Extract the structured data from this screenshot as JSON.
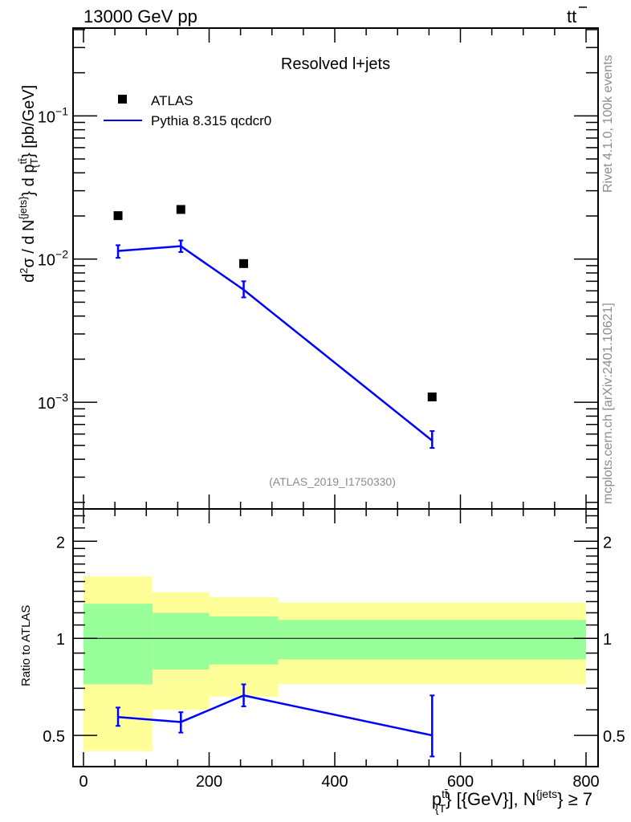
{
  "header": {
    "left": "13000 GeV pp",
    "right_main": "tt",
    "right_bar": "¯"
  },
  "side_labels": {
    "rivet": "Rivet 4.1.0,  100k events",
    "mcplots": "mcplots.cern.ch [arXiv:2401.10621]"
  },
  "colors": {
    "mc": "#0000ff",
    "data": "#000000",
    "band_inner": "#99ff99",
    "band_outer": "#ffff99"
  },
  "chart_data": [
    {
      "type": "scatter",
      "title": "Resolved l+jets",
      "analysis_tag": "(ATLAS_2019_I1750330)",
      "ylabel_parts": {
        "d": "d",
        "sq": "2",
        "sigma": "σ /  d N",
        "jets": "{jets}",
        "brace": "} d p",
        "tt": "tt̄",
        "T": "{T",
        "unit": "} [pb/GeV]"
      },
      "yscale": "log",
      "ylim": [
        0.00018,
        0.41
      ],
      "ytick_labels": [
        {
          "value": 0.1,
          "base": "10",
          "exp": "−1"
        },
        {
          "value": 0.01,
          "base": "10",
          "exp": "−2"
        },
        {
          "value": 0.001,
          "base": "10",
          "exp": "−3"
        }
      ],
      "xlim": [
        -17,
        819
      ],
      "legend": {
        "placement": "top-left",
        "entries": [
          "ATLAS",
          "Pythia 8.315 qcdcr0"
        ]
      },
      "series": [
        {
          "name": "ATLAS",
          "style": "markers",
          "x": [
            55,
            155,
            255,
            555
          ],
          "y": [
            0.0201,
            0.0222,
            0.0093,
            0.00109
          ]
        },
        {
          "name": "Pythia 8.315 qcdcr0",
          "style": "line",
          "x": [
            55,
            155,
            255,
            555
          ],
          "y": [
            0.0114,
            0.0123,
            0.0061,
            0.00054
          ],
          "yerr_low": [
            0.0102,
            0.0112,
            0.0054,
            0.00048
          ],
          "yerr_high": [
            0.0125,
            0.0135,
            0.007,
            0.00063
          ]
        }
      ]
    },
    {
      "type": "line",
      "ylabel": "Ratio to ATLAS",
      "xlabel_parts": {
        "p": "p",
        "tt": "tt̄",
        "T": "{T",
        "rest": "} [{GeV}], N",
        "jets": "{jets",
        "tail": "} ≥ 7"
      },
      "yscale": "log",
      "ylim": [
        0.4,
        2.52
      ],
      "ytick_labels": [
        {
          "value": 0.5,
          "label": "0.5"
        },
        {
          "value": 1,
          "label": "1"
        },
        {
          "value": 2,
          "label": "2"
        }
      ],
      "xtick_labels": [
        {
          "value": 0,
          "label": "0"
        },
        {
          "value": 200,
          "label": "200"
        },
        {
          "value": 400,
          "label": "400"
        },
        {
          "value": 600,
          "label": "600"
        },
        {
          "value": 800,
          "label": "800"
        }
      ],
      "bins": [
        [
          0,
          110
        ],
        [
          110,
          200
        ],
        [
          200,
          310
        ],
        [
          310,
          800
        ]
      ],
      "band_outer": {
        "low": [
          0.447,
          0.6,
          0.66,
          0.72
        ],
        "high": [
          1.556,
          1.39,
          1.34,
          1.29
        ]
      },
      "band_inner": {
        "low": [
          0.72,
          0.8,
          0.83,
          0.86
        ],
        "high": [
          1.28,
          1.2,
          1.17,
          1.14
        ]
      },
      "series": [
        {
          "name": "Pythia 8.315 qcdcr0",
          "x": [
            55,
            155,
            255,
            555
          ],
          "y": [
            0.57,
            0.55,
            0.665,
            0.5
          ],
          "yerr_low": [
            0.535,
            0.51,
            0.615,
            0.43
          ],
          "yerr_high": [
            0.61,
            0.59,
            0.72,
            0.665
          ]
        }
      ]
    }
  ]
}
